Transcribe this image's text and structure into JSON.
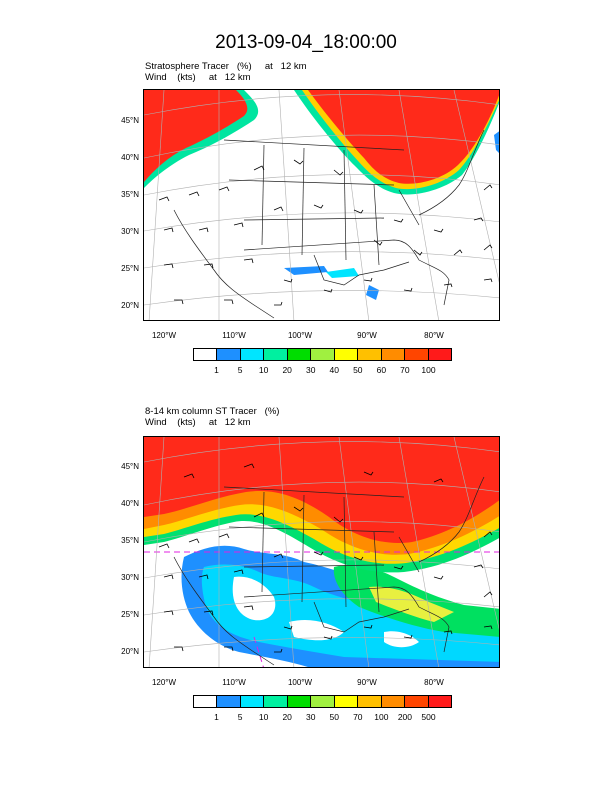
{
  "page_title": "2013-09-04_18:00:00",
  "panels": [
    {
      "title_line1": "Stratosphere Tracer   (%)     at   12 km",
      "title_line2": "Wind    (kts)     at   12 km",
      "lat_labels": [
        "45°N",
        "40°N",
        "35°N",
        "30°N",
        "25°N",
        "20°N"
      ],
      "lon_labels": [
        "120°W",
        "110°W",
        "100°W",
        "90°W",
        "80°W"
      ],
      "colorbar_colors": [
        "#ffffff",
        "#1e90ff",
        "#00e5ff",
        "#00f0a0",
        "#00dd00",
        "#a0f040",
        "#ffff00",
        "#ffc000",
        "#ff8c00",
        "#ff4500",
        "#ff1a1a"
      ],
      "colorbar_labels": [
        "1",
        "5",
        "10",
        "20",
        "30",
        "40",
        "50",
        "60",
        "70",
        "100"
      ]
    },
    {
      "title_line1": "8-14 km column ST Tracer   (%)",
      "title_line2": "Wind    (kts)     at   12 km",
      "lat_labels": [
        "45°N",
        "40°N",
        "35°N",
        "30°N",
        "25°N",
        "20°N"
      ],
      "lon_labels": [
        "120°W",
        "110°W",
        "100°W",
        "90°W",
        "80°W"
      ],
      "colorbar_colors": [
        "#ffffff",
        "#1e90ff",
        "#00e5ff",
        "#00f0a0",
        "#00dd00",
        "#a0f040",
        "#ffff00",
        "#ffc000",
        "#ff8c00",
        "#ff4500",
        "#ff1a1a"
      ],
      "colorbar_labels": [
        "1",
        "5",
        "10",
        "20",
        "30",
        "50",
        "70",
        "100",
        "200",
        "500"
      ]
    }
  ]
}
